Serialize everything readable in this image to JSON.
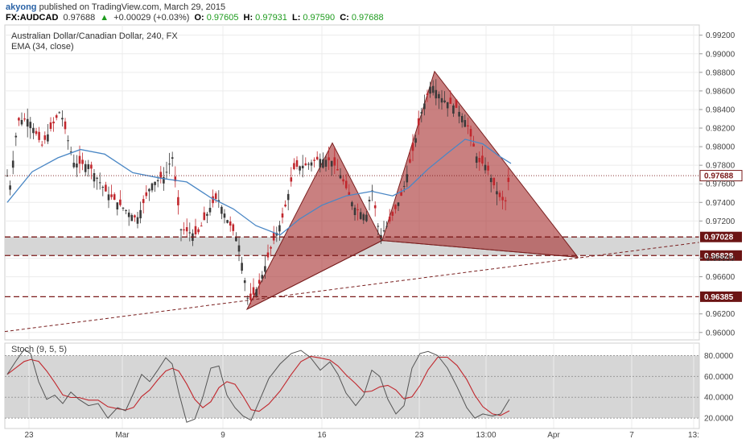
{
  "header": {
    "user": "akyong",
    "published_text": "published on TradingView.com, March 29, 2015",
    "symbol": "FX:AUDCAD",
    "last": "0.97688",
    "change": "+0.00029 (+0.03%)",
    "o_label": "O:",
    "o_value": "0.97605",
    "h_label": "H:",
    "h_value": "0.97931",
    "l_label": "L:",
    "l_value": "0.97590",
    "c_label": "C:",
    "c_value": "0.97688"
  },
  "chart_data": [
    {
      "type": "candlestick",
      "title": "Australian Dollar/Canadian Dollar, 240, FX",
      "indicator": "EMA (34, close)",
      "ylim": [
        0.9592,
        0.9931
      ],
      "yticks": [
        "0.99200",
        "0.99000",
        "0.98800",
        "0.98600",
        "0.98400",
        "0.98200",
        "0.98000",
        "0.97800",
        "0.97600",
        "0.97400",
        "0.97200",
        "0.96800",
        "0.96600",
        "0.96200",
        "0.96000"
      ],
      "xticks": [
        "23",
        "Mar",
        "9",
        "16",
        "23",
        "13:00",
        "Apr",
        "7",
        "13:"
      ],
      "grid": true,
      "last_price": 0.97688,
      "horizontal_levels": [
        {
          "value": 0.97028,
          "label": "0.97028"
        },
        {
          "value": 0.96828,
          "label": "0.96828"
        },
        {
          "value": 0.96385,
          "label": "0.96385"
        }
      ],
      "price_label_current": "0.97688",
      "patterns": [
        {
          "type": "bearish-harmonic",
          "points": [
            0.9625,
            0.9804,
            0.9699,
            0.9881,
            0.9681
          ]
        }
      ],
      "color_up": "#3a3a3a",
      "color_down": "#c1272d",
      "color_ema": "#4a87c5",
      "color_pattern": "#a83232"
    },
    {
      "type": "line",
      "indicator": "Stoch (9, 5, 5)",
      "ylim": [
        10,
        92
      ],
      "yticks": [
        "80.0000",
        "60.0000",
        "40.0000",
        "20.0000"
      ],
      "band": [
        20,
        80
      ],
      "series_colors": {
        "k": "#555555",
        "d": "#c1272d"
      }
    }
  ]
}
